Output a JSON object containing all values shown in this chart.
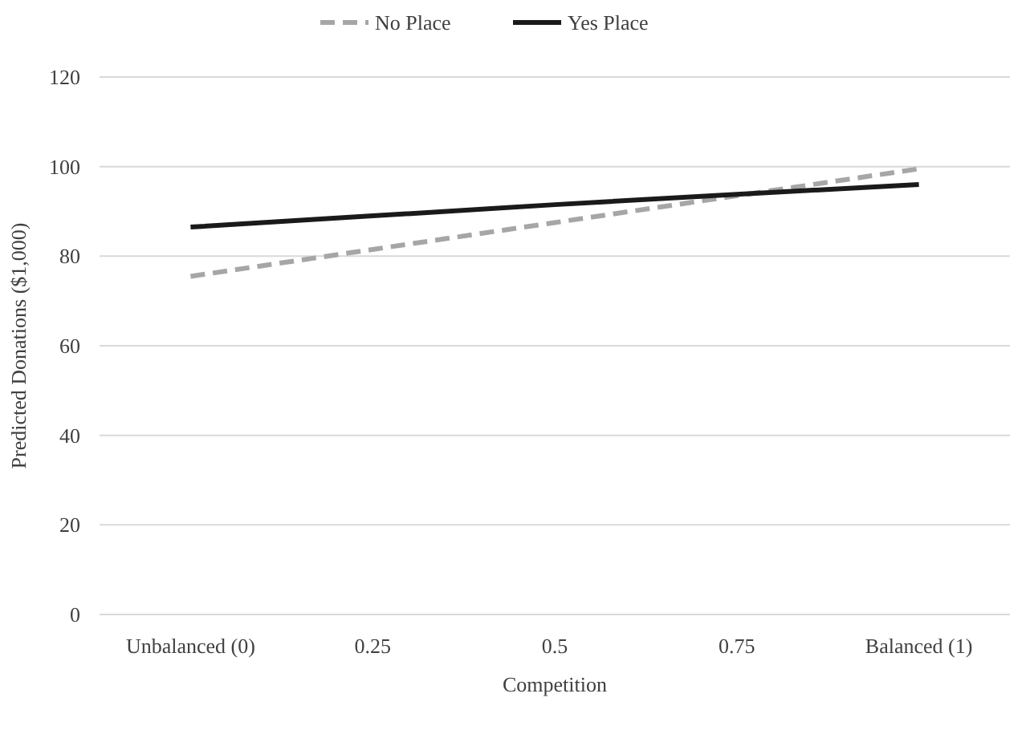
{
  "chart_data": {
    "type": "line",
    "xlabel": "Competition",
    "ylabel": "Predicted Donations ($1,000)",
    "categories": [
      "Unbalanced (0)",
      "0.25",
      "0.5",
      "0.75",
      "Balanced (1)"
    ],
    "series": [
      {
        "name": "No Place",
        "color": "#a6a6a6",
        "line_style": "dashed",
        "values": [
          75.5,
          81.5,
          87.5,
          93.5,
          99.5
        ]
      },
      {
        "name": "Yes Place",
        "color": "#1a1a1a",
        "line_style": "solid",
        "values": [
          86.5,
          89,
          91.5,
          93.8,
          96
        ]
      }
    ],
    "ylim": [
      0,
      120
    ],
    "yticks": [
      0,
      20,
      40,
      60,
      80,
      100,
      120
    ],
    "grid": "y",
    "legend": "top",
    "marker": "none"
  }
}
